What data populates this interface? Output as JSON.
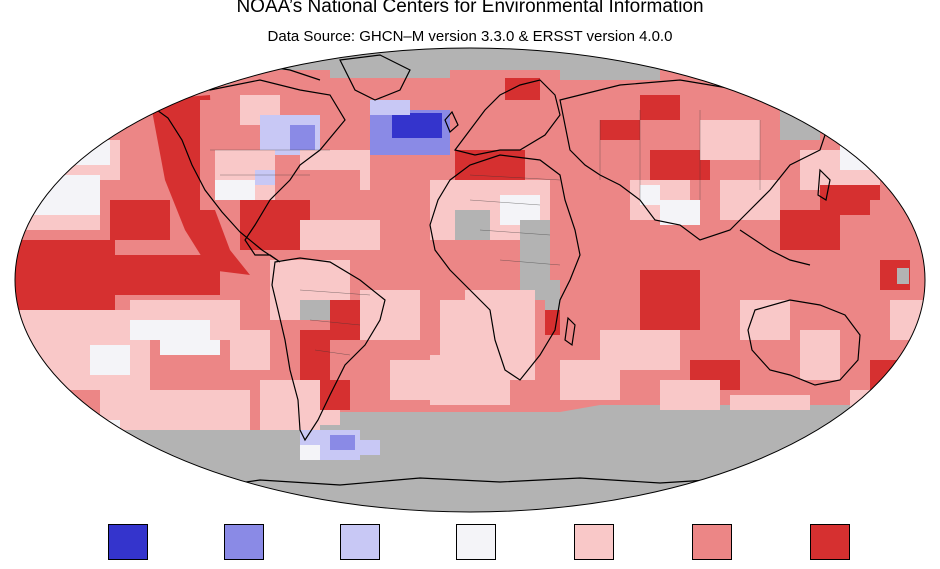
{
  "title": "NOAA’s National Centers for Environmental Information",
  "subtitle": "Data Source: GHCN–M version 3.3.0 & ERSST version 4.0.0",
  "colors": {
    "ocean_missing": "#b3b3b3",
    "much_cooler": "#3434cc",
    "cooler": "#8a8ae6",
    "slightly_cooler": "#c8c8f5",
    "near_average": "#f4f4f8",
    "slightly_warmer": "#f9c8c8",
    "warmer": "#ec8686",
    "much_warmer": "#d63030",
    "coastline": "#000000"
  },
  "legend": {
    "swatches": [
      {
        "color": "#3434cc"
      },
      {
        "color": "#8a8ae6"
      },
      {
        "color": "#c8c8f5"
      },
      {
        "color": "#f4f4f8"
      },
      {
        "color": "#f9c8c8"
      },
      {
        "color": "#ec8686"
      },
      {
        "color": "#d63030"
      }
    ]
  }
}
